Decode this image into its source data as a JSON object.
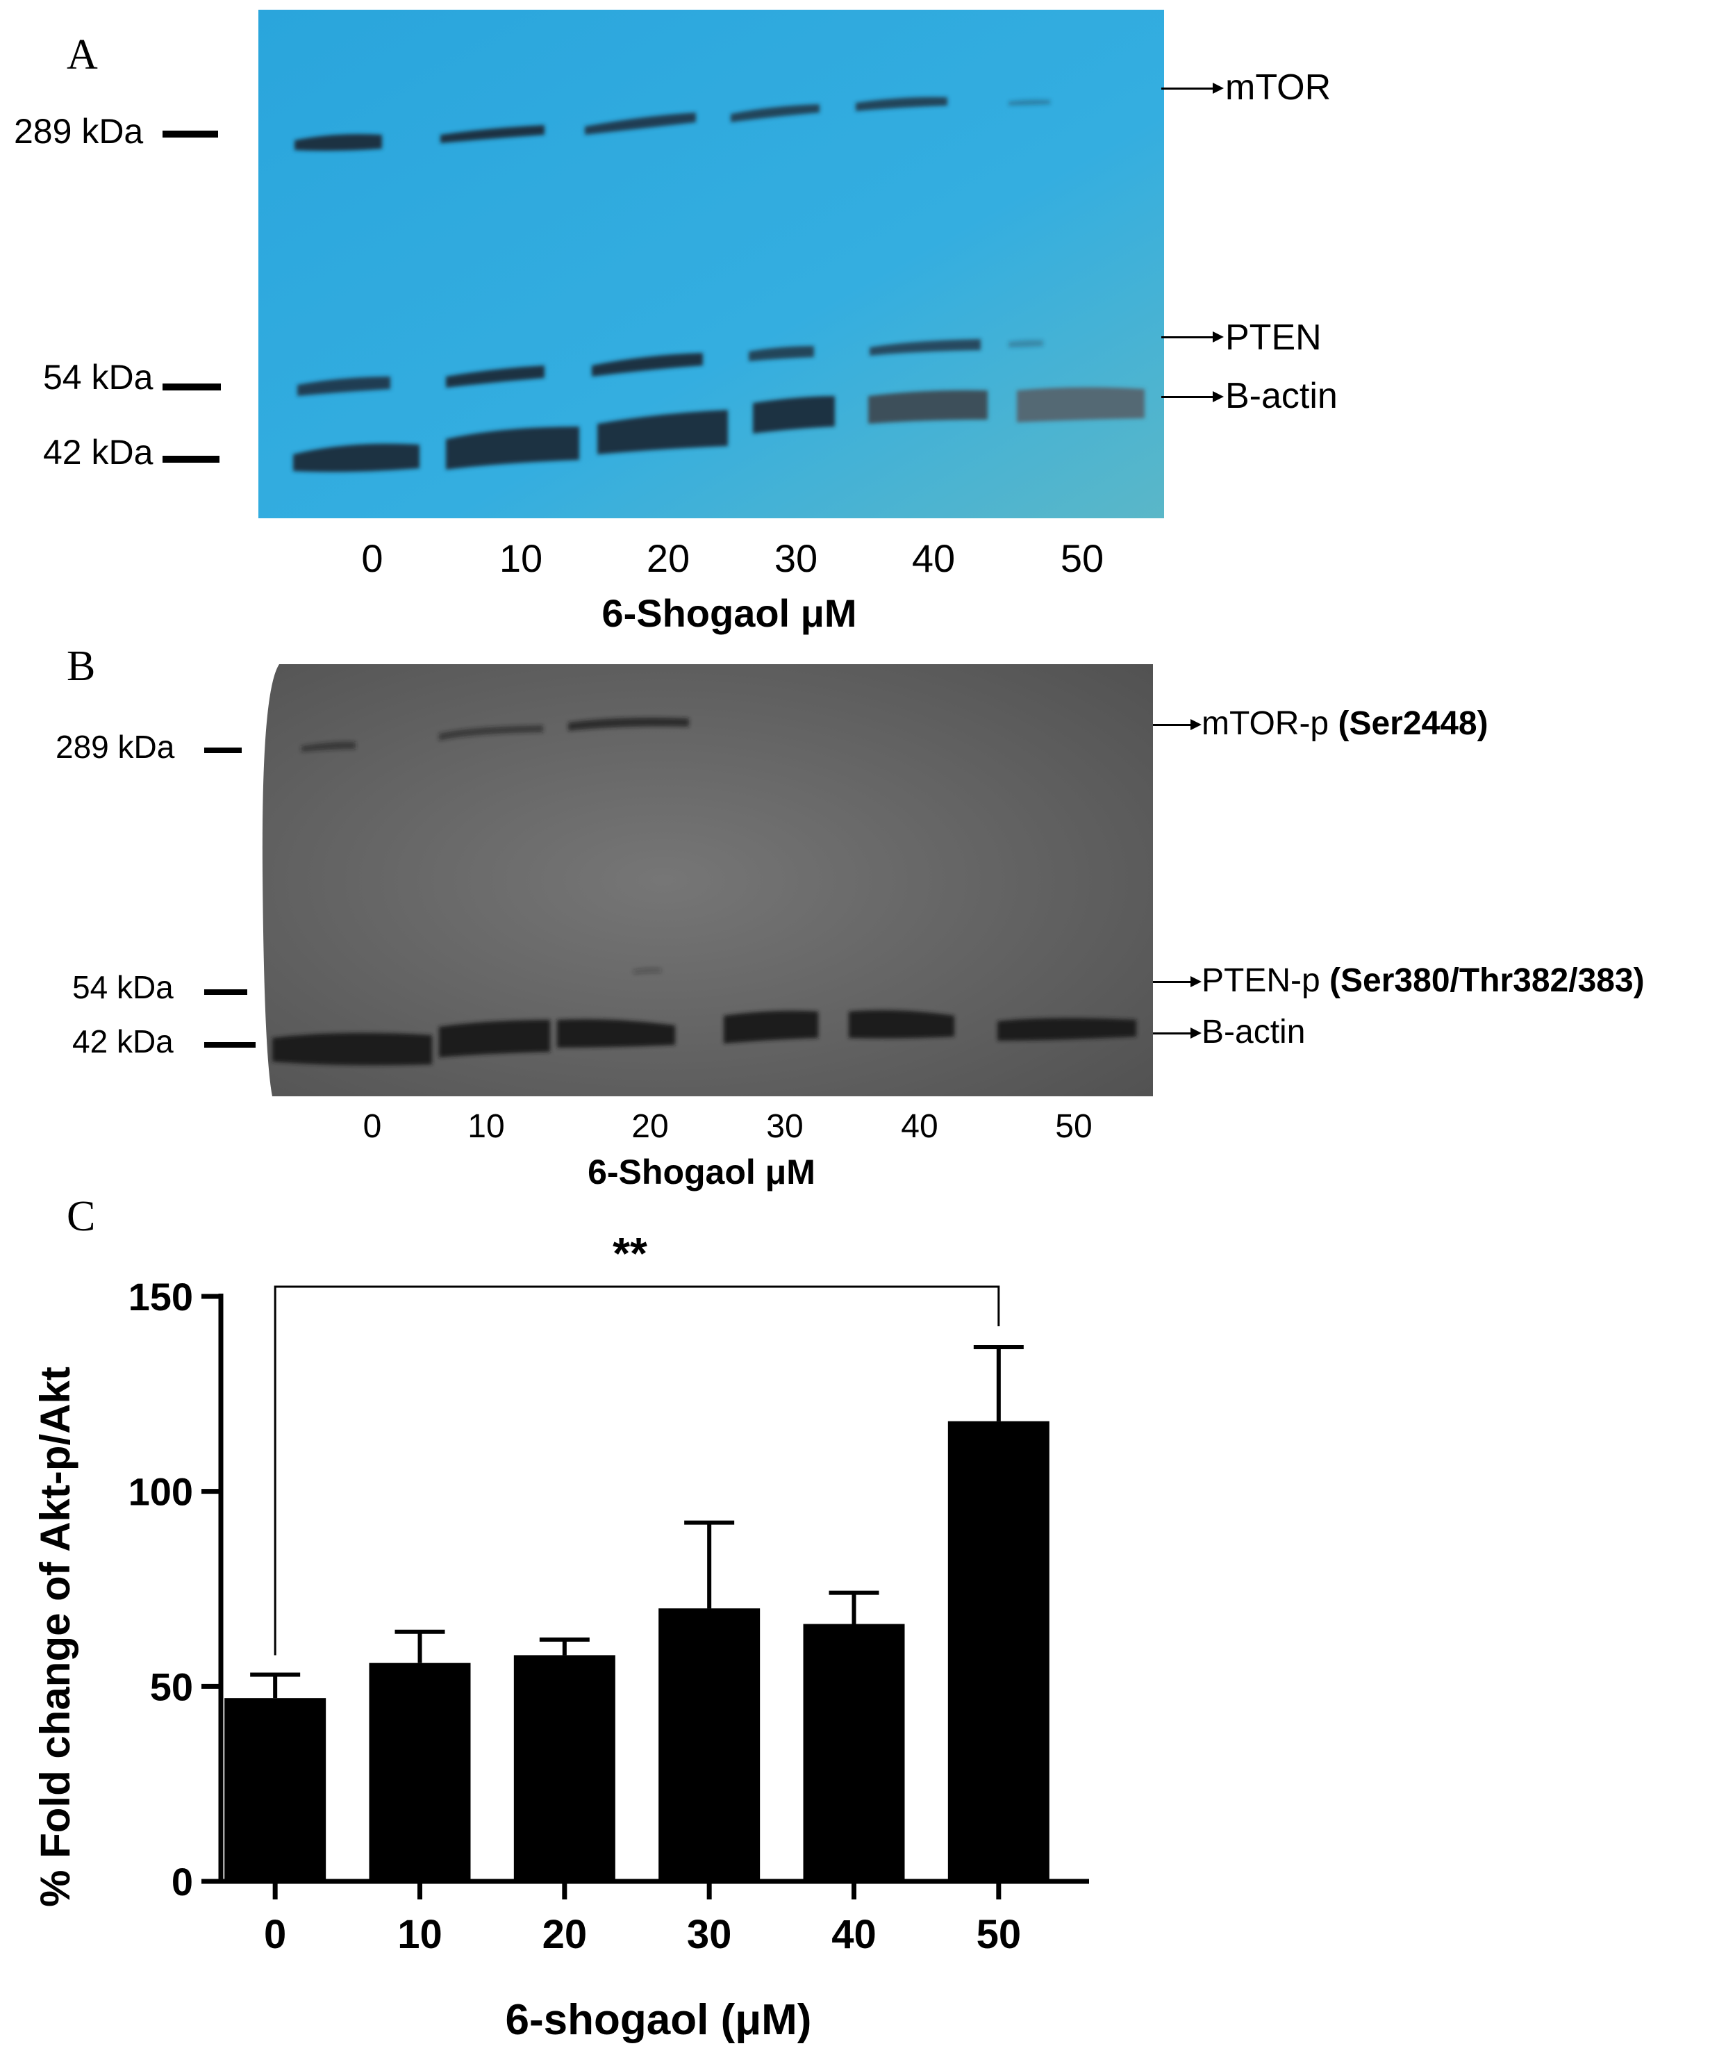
{
  "panel_a": {
    "letter": "A",
    "markers": [
      "289 kDa",
      "54 kDa",
      "42 kDa"
    ],
    "bands": [
      "mTOR",
      "PTEN",
      "B-actin"
    ],
    "lanes": [
      "0",
      "10",
      "20",
      "30",
      "40",
      "50"
    ],
    "xlabel": "6-Shogaol  μM",
    "background_color": "#2ba6dc"
  },
  "panel_b": {
    "letter": "B",
    "markers": [
      "289 kDa",
      "54 kDa",
      "42 kDa"
    ],
    "bands": [
      {
        "name": "mTOR-p",
        "site": "(Ser2448)"
      },
      {
        "name": "PTEN-p",
        "site": "(Ser380/Thr382/383)"
      },
      {
        "name": "B-actin",
        "site": ""
      }
    ],
    "lanes": [
      "0",
      "10",
      "20",
      "30",
      "40",
      "50"
    ],
    "xlabel": "6-Shogaol  μM",
    "background_color": "#6b6b6b"
  },
  "panel_c": {
    "letter": "C",
    "significance": "**"
  },
  "chart_data": {
    "type": "bar",
    "categories": [
      "0",
      "10",
      "20",
      "30",
      "40",
      "50"
    ],
    "values": [
      47,
      56,
      58,
      70,
      66,
      118
    ],
    "errors": [
      6,
      8,
      4,
      22,
      8,
      19
    ],
    "xlabel": "6-shogaol (μM)",
    "ylabel": "% Fold change of Akt-p/Akt",
    "ylim": [
      0,
      150
    ],
    "yticks": [
      0,
      50,
      100,
      150
    ],
    "bar_color": "#000000",
    "significance": {
      "from": "0",
      "to": "50",
      "label": "**"
    }
  }
}
